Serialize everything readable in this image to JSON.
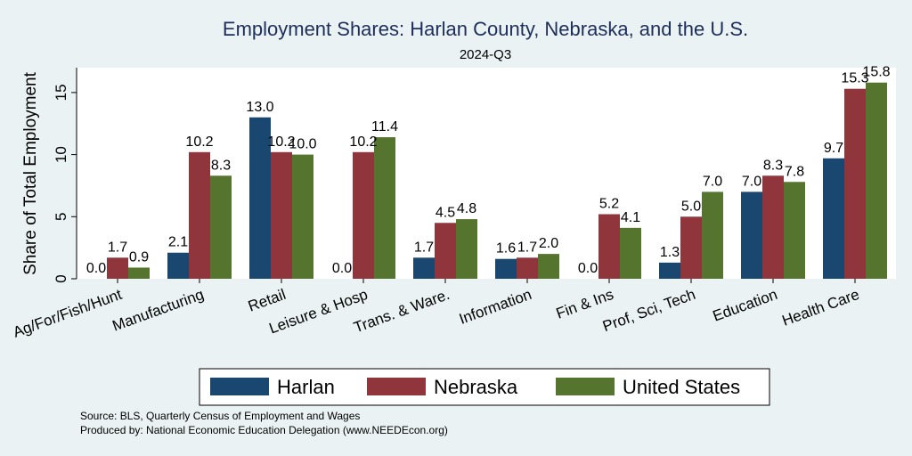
{
  "chart_data": {
    "type": "bar",
    "title": "Employment Shares: Harlan County, Nebraska, and the U.S.",
    "subtitle": "2024-Q3",
    "ylabel": "Share of Total Employment",
    "xlabel": "",
    "ylim": [
      0,
      17
    ],
    "yticks": [
      0,
      5,
      10,
      15
    ],
    "categories": [
      "Ag/For/Fish/Hunt",
      "Manufacturing",
      "Retail",
      "Leisure & Hosp",
      "Trans. & Ware.",
      "Information",
      "Fin & Ins",
      "Prof, Sci, Tech",
      "Education",
      "Health Care"
    ],
    "series": [
      {
        "name": "Harlan",
        "color": "#1a476f",
        "values": [
          0.0,
          2.1,
          13.0,
          0.0,
          1.7,
          1.6,
          0.0,
          1.3,
          7.0,
          9.7
        ],
        "labels": [
          "0.0",
          "2.1",
          "13.0",
          "0.0",
          "1.7",
          "1.6",
          "0.0",
          "1.3",
          "7.0",
          "9.7"
        ]
      },
      {
        "name": "Nebraska",
        "color": "#90353b",
        "values": [
          1.7,
          10.2,
          10.2,
          10.2,
          4.5,
          1.7,
          5.2,
          5.0,
          8.3,
          15.3
        ],
        "labels": [
          "1.7",
          "10.2",
          "10.2",
          "10.2",
          "4.5",
          "1.7",
          "5.2",
          "5.0",
          "8.3",
          "15.3"
        ]
      },
      {
        "name": "United States",
        "color": "#55752f",
        "values": [
          0.9,
          8.3,
          10.0,
          11.4,
          4.8,
          2.0,
          4.1,
          7.0,
          7.8,
          15.8
        ],
        "labels": [
          "0.9",
          "8.3",
          "10.0",
          "11.4",
          "4.8",
          "2.0",
          "4.1",
          "7.0",
          "7.8",
          "15.8"
        ]
      }
    ],
    "legend_position": "bottom",
    "grid": false
  },
  "notes": {
    "source": "Source: BLS, Quarterly Census of Employment and Wages",
    "produced": "Produced by: National Economic Education Delegation (www.NEEDEcon.org)"
  }
}
